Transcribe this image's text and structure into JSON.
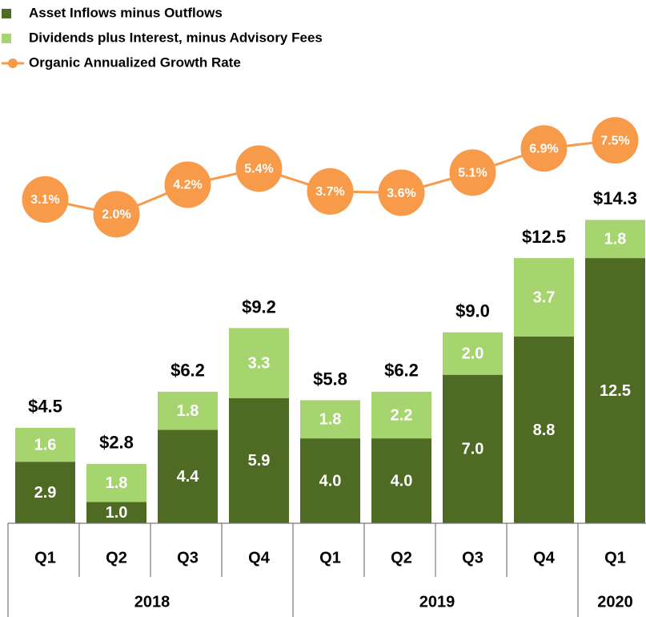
{
  "chart_data": {
    "type": "stacked-bar-line",
    "groups": [
      {
        "label": "2018",
        "categories": [
          "Q1",
          "Q2",
          "Q3",
          "Q4"
        ]
      },
      {
        "label": "2019",
        "categories": [
          "Q1",
          "Q2",
          "Q3",
          "Q4"
        ]
      },
      {
        "label": "2020",
        "categories": [
          "Q1"
        ]
      }
    ],
    "series": [
      {
        "name": "Asset Inflows minus Outflows",
        "color": "#4f6a22",
        "values": [
          2.9,
          1.0,
          4.4,
          5.9,
          4.0,
          4.0,
          7.0,
          8.8,
          12.5
        ],
        "value_labels": [
          "2.9",
          "1.0",
          "4.4",
          "5.9",
          "4.0",
          "4.0",
          "7.0",
          "8.8",
          "12.5"
        ]
      },
      {
        "name": "Dividends plus Interest, minus Advisory Fees",
        "color": "#a6d46e",
        "values": [
          1.6,
          1.8,
          1.8,
          3.3,
          1.8,
          2.2,
          2.0,
          3.7,
          1.8
        ],
        "value_labels": [
          "1.6",
          "1.8",
          "1.8",
          "3.3",
          "1.8",
          "2.2",
          "2.0",
          "3.7",
          "1.8"
        ]
      },
      {
        "name": "Organic Annualized Growth Rate",
        "color": "#f79a4a",
        "type": "line",
        "axis": "y2",
        "values": [
          3.1,
          2.0,
          4.2,
          5.4,
          3.7,
          3.6,
          5.1,
          6.9,
          7.5
        ],
        "value_labels": [
          "3.1%",
          "2.0%",
          "4.2%",
          "5.4%",
          "3.7%",
          "3.6%",
          "5.1%",
          "6.9%",
          "7.5%"
        ]
      }
    ],
    "totals": [
      4.5,
      2.8,
      6.2,
      9.2,
      5.8,
      6.2,
      9.0,
      12.5,
      14.3
    ],
    "total_labels": [
      "$4.5",
      "$2.8",
      "$6.2",
      "$9.2",
      "$5.8",
      "$6.2",
      "$9.0",
      "$12.5",
      "$14.3"
    ],
    "ylim": [
      0,
      19
    ],
    "y2lim": [
      -21,
      9
    ],
    "legend": "top-left"
  }
}
